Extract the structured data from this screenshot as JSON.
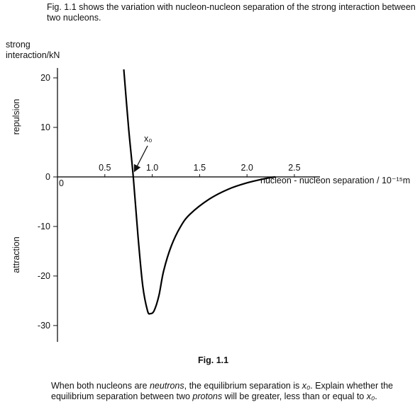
{
  "intro": "Fig. 1.1 shows the variation with nucleon-nucleon separation of the strong interaction between two nucleons.",
  "chart_data": {
    "type": "line",
    "y_label": "strong interaction/kN",
    "x_label": "nucleon - nucleon separation / 10⁻¹⁵m",
    "upper_label": "repulsion",
    "lower_label": "attraction",
    "annotation": "x₀",
    "x": [
      0.7,
      0.75,
      0.8,
      0.85,
      0.9,
      0.95,
      0.98,
      1.02,
      1.07,
      1.12,
      1.2,
      1.3,
      1.4,
      1.6,
      1.8,
      2.0,
      2.2,
      2.3
    ],
    "series": [
      {
        "color": "#000000",
        "values": [
          21.7,
          10,
          0,
          -12,
          -22,
          -27,
          -27.6,
          -27,
          -24,
          -19,
          -14,
          -10,
          -7.5,
          -4.5,
          -2.5,
          -1.2,
          -0.3,
          0
        ]
      }
    ],
    "xlim": [
      0,
      2.77
    ],
    "ylim": [
      -33.3,
      22
    ],
    "xticks": [
      0,
      0.5,
      {
        "value": 1,
        "label": "1.0"
      },
      1.5,
      {
        "value": 2,
        "label": "2.0"
      },
      2.5
    ],
    "yticks": [
      -30,
      -20,
      -10,
      0,
      10,
      20
    ]
  },
  "caption": "Fig. 1.1",
  "question": [
    "When both nucleons are ",
    "neutrons",
    ", the equilibrium separation is ",
    "x₀",
    ". Explain whether the equilibrium separation between two ",
    "protons",
    " will be greater, less than or equal to ",
    "x₀",
    "."
  ]
}
